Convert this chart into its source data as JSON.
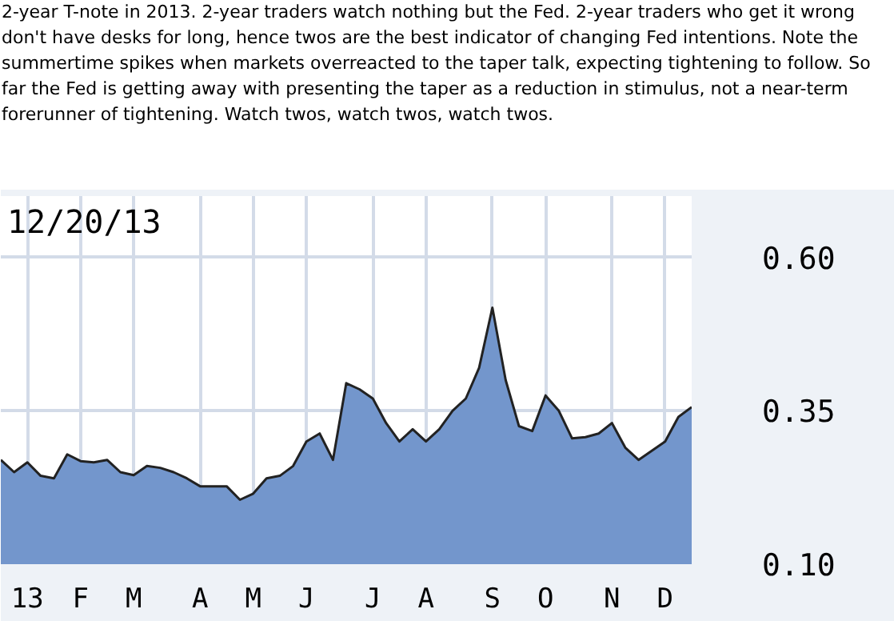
{
  "chart_data": {
    "type": "area",
    "title": "12/20/13",
    "annotations": [
      "2-year T-note in 2013. 2-year traders watch nothing but the Fed. 2-year traders who get it wrong don't have desks for long, hence twos are the best indicator of changing Fed intentions. Note the summertime spikes when markets overreacted to the taper talk, expecting tightening to follow. So far the Fed is getting away with presenting the taper as a reduction in stimulus, not a near-term forerunner of tightening. Watch twos, watch twos, watch twos."
    ],
    "categories": [
      null,
      null,
      "13",
      null,
      null,
      null,
      "F",
      null,
      null,
      null,
      "M",
      null,
      null,
      null,
      null,
      "A",
      null,
      null,
      null,
      "M",
      null,
      null,
      null,
      "J",
      null,
      null,
      null,
      null,
      "J",
      null,
      null,
      null,
      "A",
      null,
      null,
      null,
      null,
      "S",
      null,
      null,
      null,
      "O",
      null,
      null,
      null,
      null,
      "N",
      null,
      null,
      null,
      "D",
      null,
      null
    ],
    "series": [
      {
        "color": "#7396cc",
        "values": [
          0.27,
          0.25,
          0.266,
          0.244,
          0.24,
          0.279,
          0.268,
          0.266,
          0.27,
          0.25,
          0.245,
          0.26,
          0.257,
          0.25,
          0.24,
          0.227,
          0.227,
          0.227,
          0.205,
          0.215,
          0.24,
          0.244,
          0.26,
          0.3,
          0.313,
          0.27,
          0.395,
          0.385,
          0.37,
          0.33,
          0.3,
          0.32,
          0.3,
          0.32,
          0.35,
          0.37,
          0.42,
          0.518,
          0.4,
          0.325,
          0.317,
          0.375,
          0.35,
          0.305,
          0.307,
          0.313,
          0.33,
          0.29,
          0.27,
          0.285,
          0.3,
          0.34,
          0.356
        ]
      }
    ],
    "ylim": [
      0.1,
      0.7
    ],
    "yticks": [
      {
        "value": 0.1,
        "label": "0.10"
      },
      {
        "value": 0.35,
        "label": "0.35"
      },
      {
        "value": 0.6,
        "label": "0.60"
      }
    ],
    "grid": true
  }
}
